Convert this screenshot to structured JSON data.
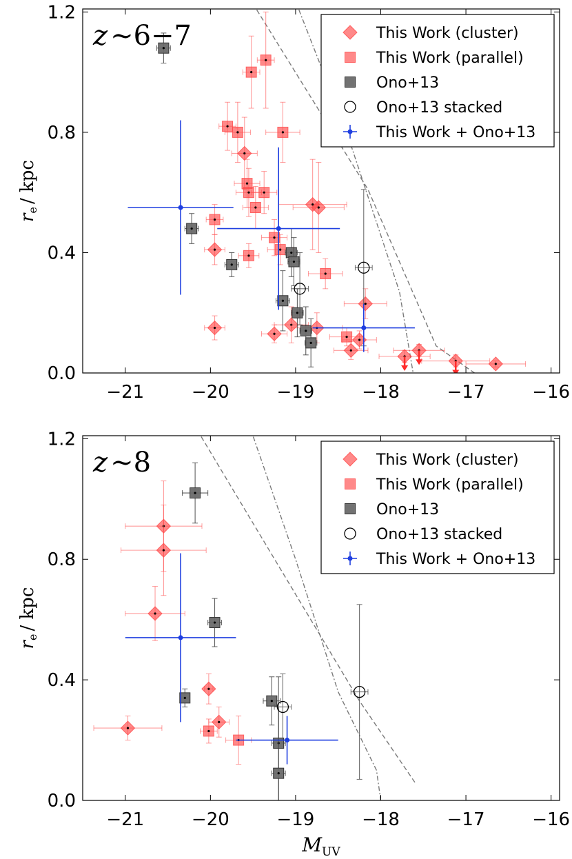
{
  "colors": {
    "cluster": "#ff4a4a",
    "parallel": "#ff4a4a",
    "ono": "#4a4a4a",
    "combined": "#1f3fe0",
    "limit_line": "#7a7a7a"
  },
  "shared": {
    "xlabel_main": "M",
    "xlabel_sub": "UV",
    "ylabel_main": "r",
    "ylabel_sub": "e",
    "ylabel_unit": "/ kpc",
    "xticks": [
      -21,
      -20,
      -19,
      -18,
      -17,
      -16
    ],
    "yticks": [
      0.0,
      0.4,
      0.8,
      1.2
    ],
    "xlim": [
      -21.5,
      -15.9
    ],
    "ylim": [
      0.0,
      1.21
    ],
    "legend": [
      {
        "key": "cluster",
        "label": "This Work (cluster)",
        "marker": "diamond"
      },
      {
        "key": "parallel",
        "label": "This Work (parallel)",
        "marker": "square"
      },
      {
        "key": "ono",
        "label": "Ono+13",
        "marker": "square"
      },
      {
        "key": "ono_stacked",
        "label": "Ono+13 stacked",
        "marker": "circle"
      },
      {
        "key": "combined",
        "label": "This Work + Ono+13",
        "marker": "cross"
      }
    ]
  },
  "chart_data": [
    {
      "type": "scatter",
      "panel_label": "z∼6−7",
      "title_z": "z",
      "title_rest": "∼6−7",
      "legend_position": "top-right",
      "series": [
        {
          "name": "This Work (cluster)",
          "key": "cluster",
          "marker": "diamond",
          "points": [
            {
              "x": -19.95,
              "y": 0.41,
              "xerr": 0.12,
              "yerr": 0.05
            },
            {
              "x": -19.95,
              "y": 0.15,
              "xerr": 0.12,
              "yerr": 0.04
            },
            {
              "x": -19.6,
              "y": 0.73,
              "xerr": 0.15,
              "yerr": 0.12
            },
            {
              "x": -19.25,
              "y": 0.13,
              "xerr": 0.15,
              "yerr": 0.03
            },
            {
              "x": -19.05,
              "y": 0.16,
              "xerr": 0.2,
              "yerr": 0.06
            },
            {
              "x": -18.8,
              "y": 0.56,
              "xerr": 0.4,
              "yerr": 0.15
            },
            {
              "x": -18.73,
              "y": 0.55,
              "xerr": 0.3,
              "yerr": 0.15
            },
            {
              "x": -18.75,
              "y": 0.15,
              "xerr": 0.3,
              "yerr": 0.05
            },
            {
              "x": -18.35,
              "y": 0.075,
              "xerr": 0.2,
              "yerr": 0.03
            },
            {
              "x": -18.25,
              "y": 0.11,
              "xerr": 0.2,
              "yerr": 0.03
            },
            {
              "x": -18.18,
              "y": 0.23,
              "xerr": 0.25,
              "yerr": 0.05
            },
            {
              "x": -17.72,
              "y": 0.055,
              "xerr": 0.3,
              "yerr": 0.02,
              "upper_limit": true
            },
            {
              "x": -17.55,
              "y": 0.075,
              "xerr": 0.3,
              "yerr": 0.02,
              "upper_limit": true
            },
            {
              "x": -17.12,
              "y": 0.04,
              "xerr": 0.4,
              "yerr": 0.02,
              "upper_limit": true
            },
            {
              "x": -16.65,
              "y": 0.03,
              "xerr": 0.35,
              "yerr": 0.01
            }
          ]
        },
        {
          "name": "This Work (parallel)",
          "key": "parallel",
          "marker": "square",
          "points": [
            {
              "x": -19.8,
              "y": 0.82,
              "xerr": 0.1,
              "yerr": 0.08
            },
            {
              "x": -19.68,
              "y": 0.8,
              "xerr": 0.15,
              "yerr": 0.1
            },
            {
              "x": -19.57,
              "y": 0.63,
              "xerr": 0.15,
              "yerr": 0.08
            },
            {
              "x": -19.55,
              "y": 0.6,
              "xerr": 0.15,
              "yerr": 0.08
            },
            {
              "x": -19.55,
              "y": 0.39,
              "xerr": 0.12,
              "yerr": 0.04
            },
            {
              "x": -19.52,
              "y": 1.0,
              "xerr": 0.1,
              "yerr": 0.12
            },
            {
              "x": -19.47,
              "y": 0.55,
              "xerr": 0.15,
              "yerr": 0.07
            },
            {
              "x": -19.35,
              "y": 1.04,
              "xerr": 0.1,
              "yerr": 0.16
            },
            {
              "x": -19.37,
              "y": 0.6,
              "xerr": 0.15,
              "yerr": 0.07
            },
            {
              "x": -19.25,
              "y": 0.45,
              "xerr": 0.15,
              "yerr": 0.06
            },
            {
              "x": -19.18,
              "y": 0.41,
              "xerr": 0.15,
              "yerr": 0.05
            },
            {
              "x": -19.15,
              "y": 0.8,
              "xerr": 0.2,
              "yerr": 0.1
            },
            {
              "x": -19.95,
              "y": 0.51,
              "xerr": 0.1,
              "yerr": 0.05
            },
            {
              "x": -18.65,
              "y": 0.33,
              "xerr": 0.2,
              "yerr": 0.05
            },
            {
              "x": -18.4,
              "y": 0.12,
              "xerr": 0.2,
              "yerr": 0.03
            }
          ]
        },
        {
          "name": "Ono+13",
          "key": "ono",
          "marker": "square",
          "points": [
            {
              "x": -20.55,
              "y": 1.08,
              "xerr": 0.08,
              "yerr": 0.05
            },
            {
              "x": -20.22,
              "y": 0.48,
              "xerr": 0.08,
              "yerr": 0.05
            },
            {
              "x": -19.75,
              "y": 0.36,
              "xerr": 0.08,
              "yerr": 0.04
            },
            {
              "x": -19.15,
              "y": 0.24,
              "xerr": 0.08,
              "yerr": 0.1
            },
            {
              "x": -19.05,
              "y": 0.4,
              "xerr": 0.07,
              "yerr": 0.08
            },
            {
              "x": -19.02,
              "y": 0.37,
              "xerr": 0.07,
              "yerr": 0.08
            },
            {
              "x": -18.98,
              "y": 0.2,
              "xerr": 0.07,
              "yerr": 0.08
            },
            {
              "x": -18.88,
              "y": 0.14,
              "xerr": 0.07,
              "yerr": 0.08
            },
            {
              "x": -18.82,
              "y": 0.1,
              "xerr": 0.07,
              "yerr": 0.08
            }
          ]
        },
        {
          "name": "Ono+13 stacked",
          "key": "ono_stacked",
          "marker": "circle",
          "points": [
            {
              "x": -18.95,
              "y": 0.28,
              "xerr": 0.1,
              "yerr": 0.12
            },
            {
              "x": -18.2,
              "y": 0.35,
              "xerr": 0.1,
              "yerr": 0.26
            }
          ]
        },
        {
          "name": "This Work + Ono+13",
          "key": "combined",
          "marker": "cross",
          "points": [
            {
              "x": -20.35,
              "y": 0.55,
              "xerr": 0.62,
              "yerr": 0.29
            },
            {
              "x": -19.2,
              "y": 0.48,
              "xerr": 0.72,
              "yerr": 0.27
            },
            {
              "x": -18.2,
              "y": 0.15,
              "xerr": 0.6,
              "yerr": 0.08
            }
          ]
        }
      ],
      "limit_lines": [
        {
          "style": "dashed",
          "x": [
            -19.55,
            -18.15,
            -17.35,
            -16.9
          ],
          "y": [
            1.25,
            0.61,
            0.09,
            0.0
          ]
        },
        {
          "style": "dashdot",
          "x": [
            -19.02,
            -18.4,
            -17.78,
            -17.62
          ],
          "y": [
            1.25,
            0.8,
            0.27,
            0.0
          ]
        }
      ]
    },
    {
      "type": "scatter",
      "panel_label": "z∼8",
      "title_z": "z",
      "title_rest": "∼8",
      "legend_position": "top-right",
      "series": [
        {
          "name": "This Work (cluster)",
          "key": "cluster",
          "marker": "diamond",
          "points": [
            {
              "x": -20.97,
              "y": 0.24,
              "xerr": 0.4,
              "yerr": 0.04
            },
            {
              "x": -20.55,
              "y": 0.91,
              "xerr": 0.45,
              "yerr": 0.15
            },
            {
              "x": -20.55,
              "y": 0.83,
              "xerr": 0.5,
              "yerr": 0.15
            },
            {
              "x": -20.65,
              "y": 0.62,
              "xerr": 0.35,
              "yerr": 0.09
            },
            {
              "x": -20.02,
              "y": 0.37,
              "xerr": 0.05,
              "yerr": 0.05
            },
            {
              "x": -19.9,
              "y": 0.26,
              "xerr": 0.12,
              "yerr": 0.05
            }
          ]
        },
        {
          "name": "This Work (parallel)",
          "key": "parallel",
          "marker": "square",
          "points": [
            {
              "x": -20.02,
              "y": 0.23,
              "xerr": 0.1,
              "yerr": 0.04
            },
            {
              "x": -19.67,
              "y": 0.2,
              "xerr": 0.15,
              "yerr": 0.08
            }
          ]
        },
        {
          "name": "Ono+13",
          "key": "ono",
          "marker": "square",
          "points": [
            {
              "x": -20.18,
              "y": 1.02,
              "xerr": 0.15,
              "yerr": 0.1
            },
            {
              "x": -20.3,
              "y": 0.34,
              "xerr": 0.05,
              "yerr": 0.03
            },
            {
              "x": -19.95,
              "y": 0.59,
              "xerr": 0.08,
              "yerr": 0.08
            },
            {
              "x": -19.28,
              "y": 0.33,
              "xerr": 0.1,
              "yerr": 0.08
            },
            {
              "x": -19.2,
              "y": 0.19,
              "xerr": 0.08,
              "yerr": 0.22
            },
            {
              "x": -19.2,
              "y": 0.09,
              "xerr": 0.08,
              "yerr": 0.22
            }
          ]
        },
        {
          "name": "Ono+13 stacked",
          "key": "ono_stacked",
          "marker": "circle",
          "points": [
            {
              "x": -19.15,
              "y": 0.31,
              "xerr": 0.1,
              "yerr": 0.11
            },
            {
              "x": -18.25,
              "y": 0.36,
              "xerr": 0.1,
              "yerr": 0.29
            }
          ]
        },
        {
          "name": "This Work + Ono+13",
          "key": "combined",
          "marker": "cross",
          "points": [
            {
              "x": -20.35,
              "y": 0.54,
              "xerr": 0.65,
              "yerr": 0.28
            },
            {
              "x": -19.1,
              "y": 0.2,
              "xerr": 0.6,
              "yerr": 0.08
            }
          ]
        }
      ],
      "limit_lines": [
        {
          "style": "dashed",
          "x": [
            -20.2,
            -18.25,
            -17.6
          ],
          "y": [
            1.25,
            0.33,
            0.06
          ]
        },
        {
          "style": "dashdot",
          "x": [
            -19.55,
            -19.0,
            -18.5,
            -18.05,
            -18.0
          ],
          "y": [
            1.25,
            0.8,
            0.36,
            0.1,
            0.0
          ]
        }
      ]
    }
  ]
}
